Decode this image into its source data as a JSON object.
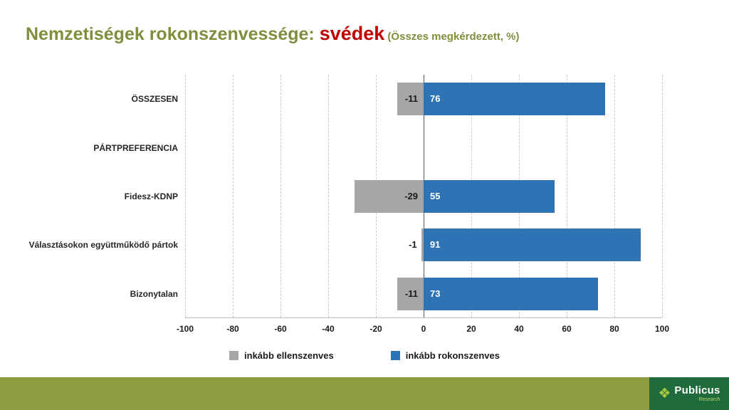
{
  "title": {
    "main": "Nemzetiségek rokonszenvessége: ",
    "highlight": "svédek",
    "suffix": " (Összes megkérdezett, %)"
  },
  "chart_data": {
    "type": "bar",
    "orientation": "horizontal",
    "categories": [
      "ÖSSZESEN",
      "PÁRTPREFERENCIA",
      "Fidesz-KDNP",
      "Választásokon együttműködő pártok",
      "Bizonytalan"
    ],
    "series": [
      {
        "name": "inkább ellenszenves",
        "color": "#A6A6A6",
        "values": [
          -11,
          null,
          -29,
          -1,
          -11
        ]
      },
      {
        "name": "inkább rokonszenves",
        "color": "#2E74B5",
        "values": [
          76,
          null,
          55,
          91,
          73
        ]
      }
    ],
    "xlim": [
      -100,
      100
    ],
    "xticks": [
      -100,
      -80,
      -60,
      -40,
      -20,
      0,
      20,
      40,
      60,
      80,
      100
    ],
    "grid": "dashed-vertical",
    "legend_position": "bottom"
  },
  "legend": [
    {
      "label": "inkább ellenszenves",
      "color": "#A6A6A6"
    },
    {
      "label": "inkább rokonszenves",
      "color": "#2E74B5"
    }
  ],
  "footer": {
    "brand": "Publicus",
    "brand_sub": "Research"
  },
  "colors": {
    "title_olive": "#7E8F3D",
    "title_red": "#C00000",
    "bar_gray": "#A6A6A6",
    "bar_blue": "#2E74B5",
    "footer_olive": "#8D9C40",
    "logo_green": "#1F6B3B"
  }
}
